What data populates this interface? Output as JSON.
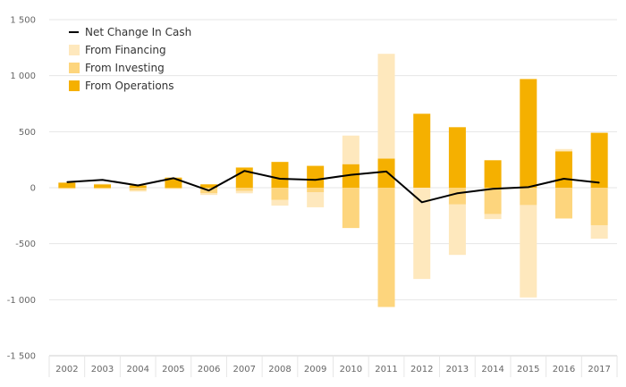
{
  "chart_data": {
    "type": "bar",
    "categories": [
      "2002",
      "2003",
      "2004",
      "2005",
      "2006",
      "2007",
      "2008",
      "2009",
      "2010",
      "2011",
      "2012",
      "2013",
      "2014",
      "2015",
      "2016",
      "2017"
    ],
    "series": [
      {
        "name": "From Operations",
        "kind": "stacked-bar",
        "color": "#f5b000",
        "values": [
          45,
          30,
          20,
          90,
          30,
          180,
          230,
          195,
          210,
          260,
          660,
          540,
          245,
          970,
          325,
          490
        ]
      },
      {
        "name": "From Investing",
        "kind": "stacked-bar",
        "color": "#fdd57d",
        "values": [
          -10,
          -10,
          -25,
          -10,
          -50,
          -30,
          -110,
          -40,
          -360,
          -1065,
          0,
          -150,
          -235,
          -155,
          -275,
          -335
        ]
      },
      {
        "name": "From Financing",
        "kind": "stacked-bar",
        "color": "#fee8bd",
        "values": [
          0,
          5,
          -10,
          0,
          -15,
          -20,
          -50,
          -135,
          255,
          935,
          -815,
          -450,
          -45,
          -825,
          20,
          -120
        ]
      },
      {
        "name": "Net Change In Cash",
        "kind": "line",
        "color": "#000000",
        "values": [
          50,
          70,
          20,
          85,
          -25,
          150,
          80,
          70,
          115,
          145,
          -130,
          -50,
          -10,
          5,
          80,
          45
        ]
      }
    ],
    "ylim": [
      -1500,
      1500
    ],
    "yticks": [
      1500,
      1000,
      500,
      0,
      -500,
      -1000,
      -1500
    ],
    "ytick_labels": [
      "1 500",
      "1 000",
      "500",
      "0",
      "-500",
      "-1 000",
      "-1 500"
    ],
    "grid": true,
    "legend_position": "top-left",
    "xlabel": "",
    "ylabel": "",
    "title": ""
  }
}
